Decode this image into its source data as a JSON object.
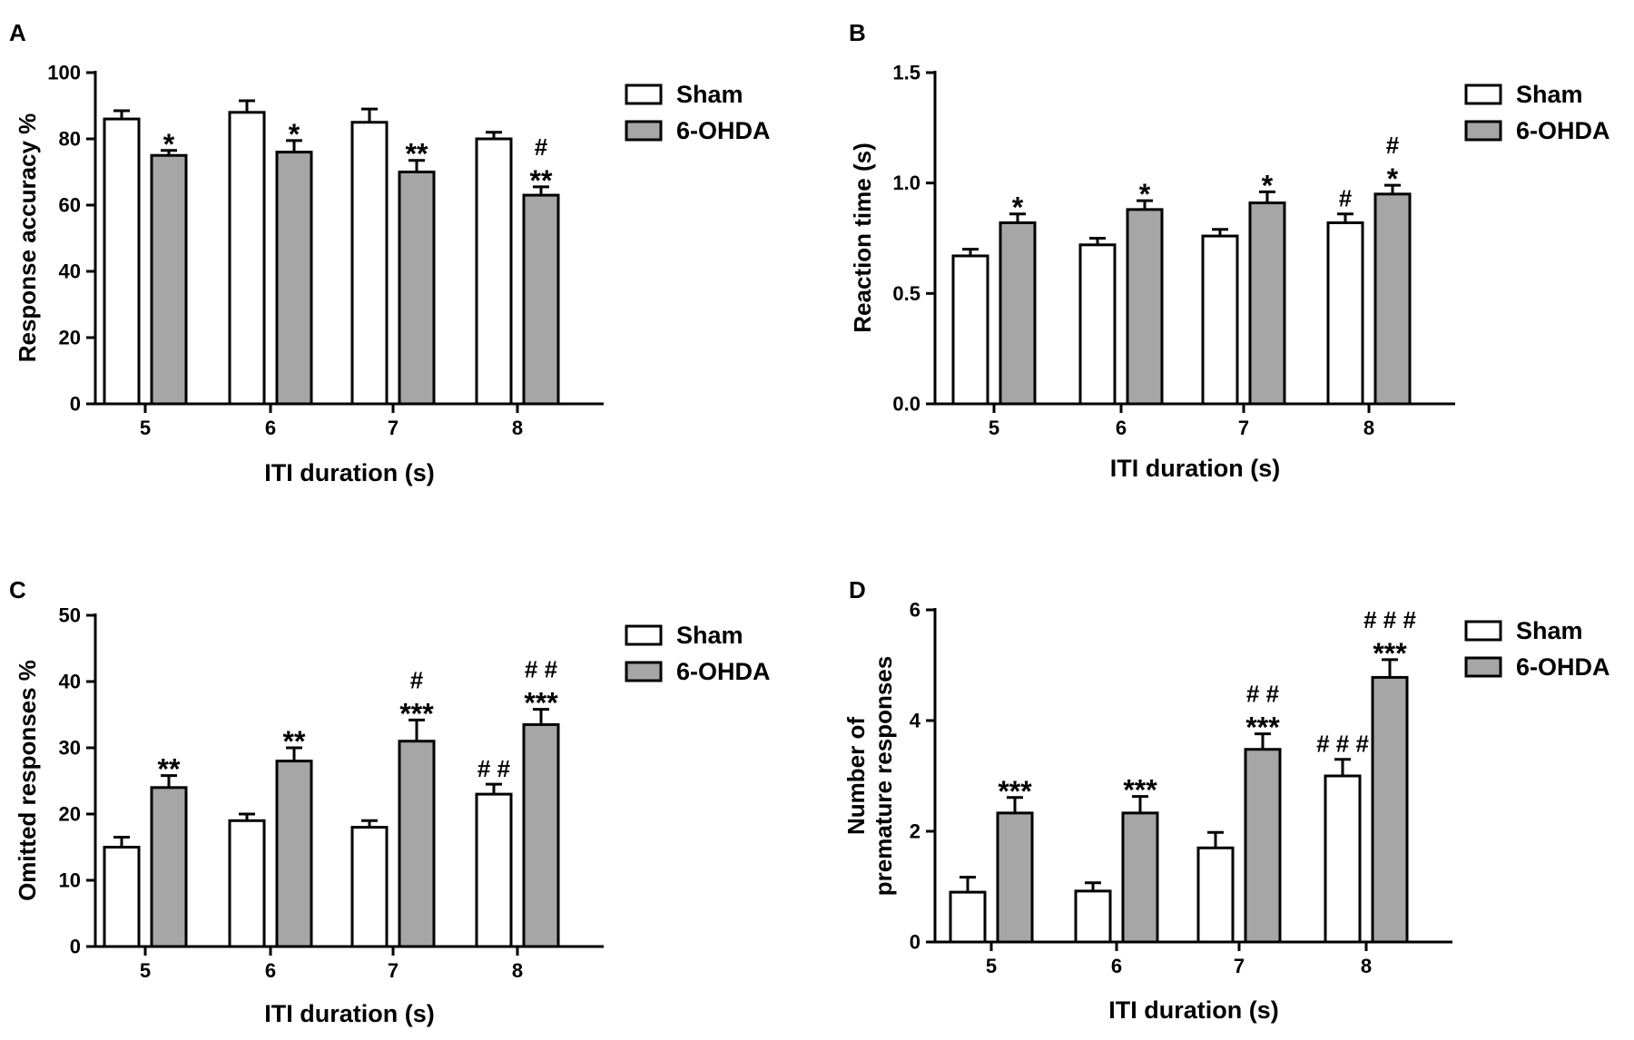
{
  "figure": {
    "background": "#ffffff"
  },
  "legend": {
    "sham_label": "Sham",
    "ohda_label": "6-OHDA",
    "sham_color": "#ffffff",
    "ohda_color": "#a6a6a6",
    "stroke_color": "#000000"
  },
  "chart_data": [
    {
      "panel": "A",
      "type": "bar",
      "xlabel": "ITI duration (s)",
      "ylabel_lines": [
        "Response accuracy %"
      ],
      "categories": [
        "5",
        "6",
        "7",
        "8"
      ],
      "ylim": [
        0,
        100
      ],
      "yticks": [
        0,
        20,
        40,
        60,
        80,
        100
      ],
      "ytick_labels": [
        "0",
        "20",
        "40",
        "60",
        "80",
        "100"
      ],
      "series": [
        {
          "name": "Sham",
          "values": [
            86,
            88,
            85,
            80
          ],
          "errors": [
            2.5,
            3.5,
            4,
            2
          ],
          "annotations": [
            "",
            "",
            "",
            ""
          ]
        },
        {
          "name": "6-OHDA",
          "values": [
            75,
            76,
            70,
            63
          ],
          "errors": [
            1.5,
            3.5,
            3.5,
            2.5
          ],
          "annotations": [
            "*",
            "*",
            "**",
            "#\n**"
          ]
        }
      ]
    },
    {
      "panel": "B",
      "type": "bar",
      "xlabel": "ITI duration (s)",
      "ylabel_lines": [
        "Reaction time (s)"
      ],
      "categories": [
        "5",
        "6",
        "7",
        "8"
      ],
      "ylim": [
        0,
        1.5
      ],
      "yticks": [
        0,
        0.5,
        1.0,
        1.5
      ],
      "ytick_labels": [
        "0.0",
        "0.5",
        "1.0",
        "1.5"
      ],
      "series": [
        {
          "name": "Sham",
          "values": [
            0.67,
            0.72,
            0.76,
            0.82
          ],
          "errors": [
            0.03,
            0.03,
            0.03,
            0.04
          ],
          "annotations": [
            "",
            "",
            "",
            "#"
          ]
        },
        {
          "name": "6-OHDA",
          "values": [
            0.82,
            0.88,
            0.91,
            0.95
          ],
          "errors": [
            0.04,
            0.04,
            0.05,
            0.04
          ],
          "annotations": [
            "*",
            "*",
            "*",
            "#\n*"
          ]
        }
      ]
    },
    {
      "panel": "C",
      "type": "bar",
      "xlabel": "ITI duration (s)",
      "ylabel_lines": [
        "Omitted responses %"
      ],
      "categories": [
        "5",
        "6",
        "7",
        "8"
      ],
      "ylim": [
        0,
        50
      ],
      "yticks": [
        0,
        10,
        20,
        30,
        40,
        50
      ],
      "ytick_labels": [
        "0",
        "10",
        "20",
        "30",
        "40",
        "50"
      ],
      "series": [
        {
          "name": "Sham",
          "values": [
            15,
            19,
            18,
            23
          ],
          "errors": [
            1.5,
            1,
            1,
            1.5
          ],
          "annotations": [
            "",
            "",
            "",
            "##"
          ]
        },
        {
          "name": "6-OHDA",
          "values": [
            24,
            28,
            31,
            33.5
          ],
          "errors": [
            1.8,
            2,
            3.2,
            2.3
          ],
          "annotations": [
            "**",
            "**",
            "#\n***",
            "##\n***"
          ]
        }
      ]
    },
    {
      "panel": "D",
      "type": "bar",
      "xlabel": "ITI duration (s)",
      "ylabel_lines": [
        "Number of",
        "premature responses"
      ],
      "categories": [
        "5",
        "6",
        "7",
        "8"
      ],
      "ylim": [
        0,
        6
      ],
      "yticks": [
        0,
        2,
        4,
        6
      ],
      "ytick_labels": [
        "0",
        "2",
        "4",
        "6"
      ],
      "series": [
        {
          "name": "Sham",
          "values": [
            0.9,
            0.92,
            1.7,
            3.0
          ],
          "errors": [
            0.27,
            0.15,
            0.28,
            0.3
          ],
          "annotations": [
            "",
            "",
            "",
            "###"
          ]
        },
        {
          "name": "6-OHDA",
          "values": [
            2.33,
            2.33,
            3.48,
            4.78
          ],
          "errors": [
            0.28,
            0.3,
            0.28,
            0.32
          ],
          "annotations": [
            "***",
            "***",
            "##\n***",
            "###\n***"
          ]
        }
      ]
    }
  ]
}
